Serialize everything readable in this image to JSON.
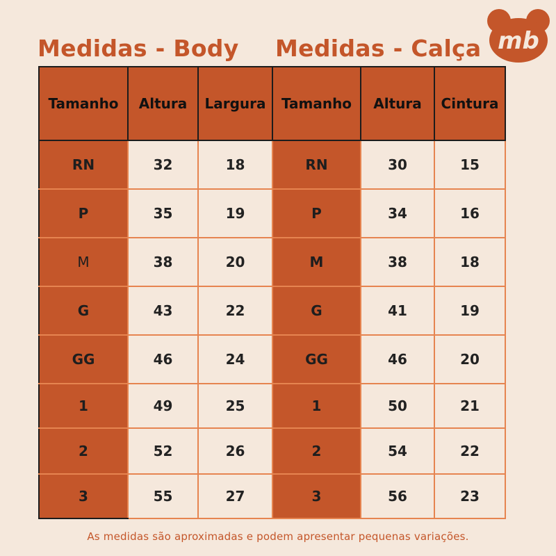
{
  "titles": {
    "body": "Medidas - Body",
    "calca": "Medidas - Calça"
  },
  "logo": {
    "text": "mb",
    "icon": "bear-head-icon",
    "color": "#c4562a"
  },
  "headers": [
    "Tamanho",
    "Altura",
    "Largura",
    "Tamanho",
    "Altura",
    "Cintura"
  ],
  "rows": [
    {
      "body_size": "RN",
      "body_altura": "32",
      "body_largura": "18",
      "calca_size": "RN",
      "calca_altura": "30",
      "calca_cintura": "15"
    },
    {
      "body_size": "P",
      "body_altura": "35",
      "body_largura": "19",
      "calca_size": "P",
      "calca_altura": "34",
      "calca_cintura": "16"
    },
    {
      "body_size": "M",
      "body_altura": "38",
      "body_largura": "20",
      "calca_size": "M",
      "calca_altura": "38",
      "calca_cintura": "18"
    },
    {
      "body_size": "G",
      "body_altura": "43",
      "body_largura": "22",
      "calca_size": "G",
      "calca_altura": "41",
      "calca_cintura": "19"
    },
    {
      "body_size": "GG",
      "body_altura": "46",
      "body_largura": "24",
      "calca_size": "GG",
      "calca_altura": "46",
      "calca_cintura": "20"
    },
    {
      "body_size": "1",
      "body_altura": "49",
      "body_largura": "25",
      "calca_size": "1",
      "calca_altura": "50",
      "calca_cintura": "21"
    },
    {
      "body_size": "2",
      "body_altura": "52",
      "body_largura": "26",
      "calca_size": "2",
      "calca_altura": "54",
      "calca_cintura": "22"
    },
    {
      "body_size": "3",
      "body_altura": "55",
      "body_largura": "27",
      "calca_size": "3",
      "calca_altura": "56",
      "calca_cintura": "23"
    }
  ],
  "footnote": "As medidas são aproximadas e podem apresentar pequenas variações.",
  "colors": {
    "accent": "#c4562a",
    "background": "#f5e8dc",
    "grid_line": "#e68450"
  }
}
